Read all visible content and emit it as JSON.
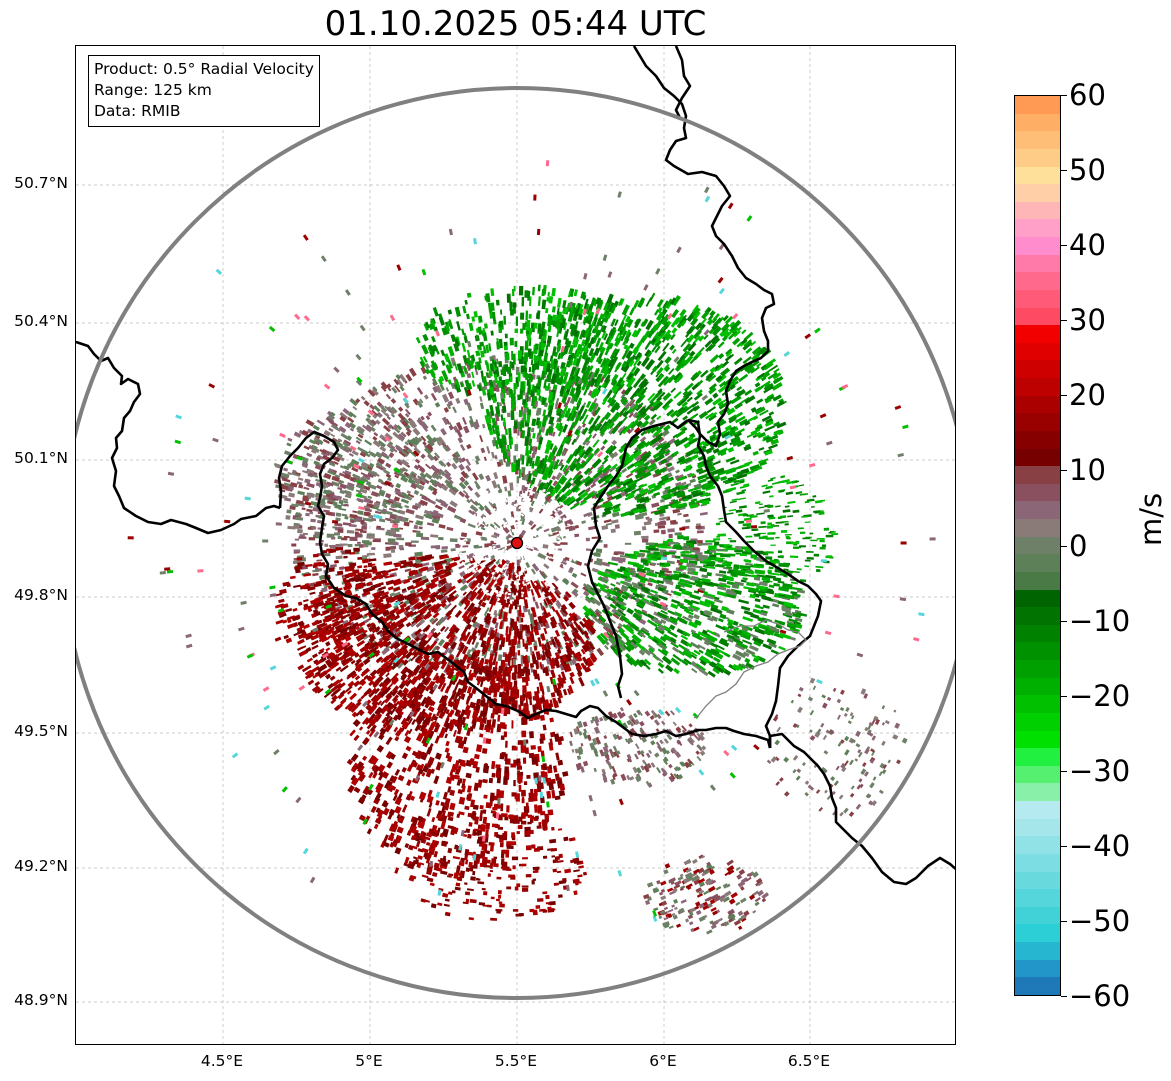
{
  "title": "01.10.2025 05:44 UTC",
  "info": {
    "product": "Product: 0.5° Radial Velocity",
    "range": "Range: 125 km",
    "source": "Data: RMIB"
  },
  "axes": {
    "lat_ticks": [
      "50.7°N",
      "50.4°N",
      "50.1°N",
      "49.8°N",
      "49.5°N",
      "49.2°N",
      "48.9°N"
    ],
    "lon_ticks": [
      "4.5°E",
      "5°E",
      "5.5°E",
      "6°E",
      "6.5°E"
    ]
  },
  "radar": {
    "site_marker_color": "#e01010",
    "range_ring_color": "#808080"
  },
  "colorbar": {
    "unit": "m/s",
    "min": -60,
    "max": 60,
    "tick_labels": [
      "60",
      "50",
      "40",
      "30",
      "20",
      "10",
      "0",
      "−10",
      "−20",
      "−30",
      "−40",
      "−50",
      "−60"
    ],
    "colors_top_to_bottom": [
      "#ff9a55",
      "#ffae66",
      "#ffbe77",
      "#ffcc88",
      "#ffe09a",
      "#ffd0a8",
      "#ffb6b6",
      "#ffa0c8",
      "#ff8ccc",
      "#ff7aa8",
      "#ff6a8c",
      "#ff5a78",
      "#ff4a64",
      "#f20000",
      "#e00000",
      "#cf0000",
      "#bd0000",
      "#ab0000",
      "#990000",
      "#870000",
      "#760000",
      "#884044",
      "#8a5060",
      "#8a6676",
      "#8a7a78",
      "#6f8068",
      "#5e8058",
      "#4a7a46",
      "#006400",
      "#007300",
      "#008200",
      "#009100",
      "#00a000",
      "#00b000",
      "#00c000",
      "#00d000",
      "#00e000",
      "#22f040",
      "#55f070",
      "#88f0a8",
      "#b4eaf0",
      "#a4e6ea",
      "#90e2e6",
      "#7cdee2",
      "#68dade",
      "#54d6da",
      "#40d2d6",
      "#2ccfd6",
      "#26b6d0",
      "#2296c8",
      "#1f78b8"
    ]
  },
  "chart_data": {
    "type": "radar_velocity_map",
    "title": "01.10.2025 05:44 UTC",
    "product": "0.5° Radial Velocity",
    "range_km": 125,
    "data_source": "RMIB",
    "radar_site": {
      "lat": 49.91,
      "lon": 5.5
    },
    "lat_range": [
      48.8,
      50.98
    ],
    "lon_range": [
      4.0,
      6.99
    ],
    "colorbar": {
      "label": "m/s",
      "vmin": -60,
      "vmax": 60,
      "ticks": [
        60,
        50,
        40,
        30,
        20,
        10,
        0,
        -10,
        -20,
        -30,
        -40,
        -50,
        -60
      ]
    },
    "regions": [
      {
        "description": "outbound (red)",
        "center_lat": 49.55,
        "center_lon": 5.3,
        "velocity_mps": 15
      },
      {
        "description": "inbound (green)",
        "center_lat": 50.2,
        "center_lon": 5.9,
        "velocity_mps": -18
      },
      {
        "description": "near-zero (grey-mauve)",
        "center_lat": 49.95,
        "center_lon": 5.4,
        "velocity_mps": 0
      }
    ]
  }
}
